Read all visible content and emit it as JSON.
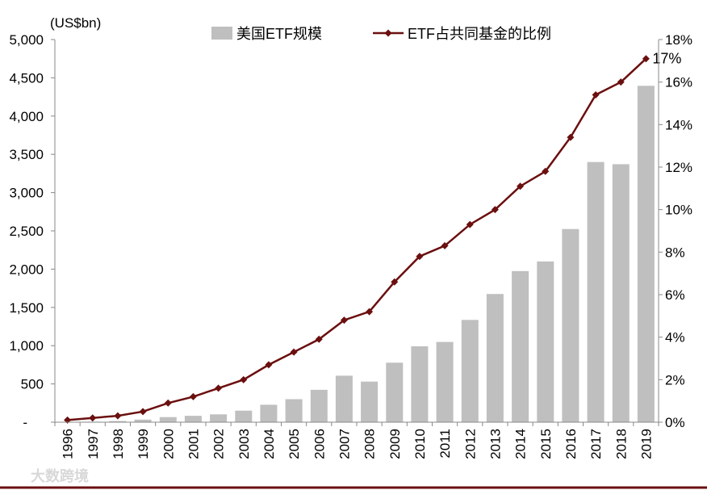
{
  "chart_data": {
    "type": "bar",
    "categories": [
      "1996",
      "1997",
      "1998",
      "1999",
      "2000",
      "2001",
      "2002",
      "2003",
      "2004",
      "2005",
      "2006",
      "2007",
      "2008",
      "2009",
      "2010",
      "2011",
      "2012",
      "2013",
      "2014",
      "2015",
      "2016",
      "2017",
      "2018",
      "2019"
    ],
    "series": [
      {
        "name": "美国ETF规模",
        "type": "bar",
        "axis": "left",
        "color": "#bfbfbf",
        "values": [
          2,
          6,
          15,
          34,
          66,
          83,
          102,
          151,
          228,
          301,
          423,
          608,
          531,
          777,
          992,
          1048,
          1337,
          1675,
          1975,
          2100,
          2524,
          3400,
          3371,
          4396
        ]
      },
      {
        "name": "ETF占共同基金的比例",
        "type": "line",
        "axis": "right",
        "color": "#6b0f0f",
        "values": [
          0.1,
          0.2,
          0.3,
          0.5,
          0.9,
          1.2,
          1.6,
          2.0,
          2.7,
          3.3,
          3.9,
          4.8,
          5.2,
          6.6,
          7.8,
          8.3,
          9.3,
          10.0,
          11.1,
          11.8,
          13.4,
          15.4,
          16.0,
          17.1
        ]
      }
    ],
    "y_left": {
      "unit_label": "(US$bn)",
      "ylim": [
        0,
        5000
      ],
      "ticks": [
        0,
        500,
        1000,
        1500,
        2000,
        2500,
        3000,
        3500,
        4000,
        4500,
        5000
      ],
      "tick_labels": [
        "-",
        "500",
        "1,000",
        "1,500",
        "2,000",
        "2,500",
        "3,000",
        "3,500",
        "4,000",
        "4,500",
        "5,000"
      ]
    },
    "y_right": {
      "ylim": [
        0,
        18
      ],
      "ticks": [
        0,
        2,
        4,
        6,
        8,
        10,
        12,
        14,
        16,
        18
      ],
      "tick_labels": [
        "0%",
        "2%",
        "4%",
        "6%",
        "8%",
        "10%",
        "12%",
        "14%",
        "16%",
        "18%"
      ]
    },
    "annotation": "17%",
    "legend_position": "top",
    "grid": false
  },
  "watermark": "大数跨境"
}
